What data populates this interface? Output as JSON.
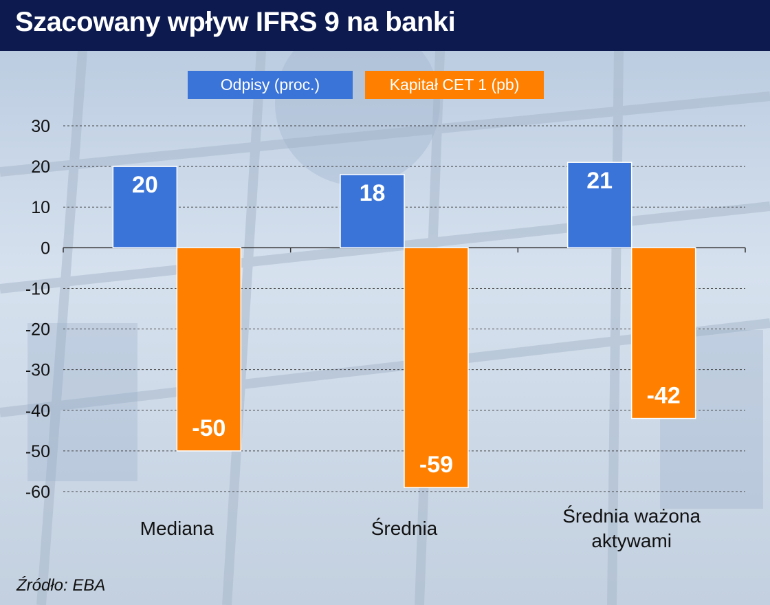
{
  "title": "Szacowany wpływ IFRS 9 na banki",
  "source": "Źródło: EBA",
  "colors": {
    "header_bg": "#0c1a4f",
    "series_blue": "#3a74d8",
    "series_orange": "#ff7f00"
  },
  "chart_data": {
    "type": "bar",
    "title": "Szacowany wpływ IFRS 9 na banki",
    "categories": [
      [
        "Mediana"
      ],
      [
        "Średnia"
      ],
      [
        "Średnia ważona",
        "aktywami"
      ]
    ],
    "series": [
      {
        "name": "Odpisy (proc.)",
        "color": "#3a74d8",
        "values": [
          20,
          18,
          21
        ],
        "labels": [
          "20",
          "18",
          "21"
        ]
      },
      {
        "name": "Kapitał CET 1 (pb)",
        "color": "#ff7f00",
        "values": [
          -50,
          -59,
          -42
        ],
        "labels": [
          "-50",
          "-59",
          "-42"
        ]
      }
    ],
    "ylim": [
      -60,
      30
    ],
    "yticks": [
      30,
      20,
      10,
      0,
      -10,
      -20,
      -30,
      -40,
      -50,
      -60
    ],
    "ytick_labels": [
      "30",
      "20",
      "10",
      "0",
      "-10",
      "-20",
      "-30",
      "-40",
      "-50",
      "-60"
    ],
    "grid": "horizontal-dashed",
    "legend": "top-center",
    "xlabel": "",
    "ylabel": ""
  }
}
